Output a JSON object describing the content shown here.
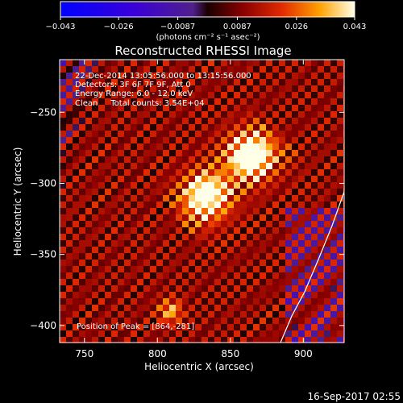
{
  "chart_data": {
    "type": "heatmap",
    "title": "Reconstructed RHESSI Image",
    "xlabel": "Heliocentric X (arcsec)",
    "ylabel": "Heliocentric Y (arcsec)",
    "xlim": [
      733,
      928
    ],
    "ylim": [
      -412,
      -213
    ],
    "x_ticks": [
      750,
      800,
      850,
      900
    ],
    "y_ticks": [
      -250,
      -300,
      -350,
      -400
    ],
    "colorbar": {
      "min": -0.043,
      "max": 0.043,
      "tick_values": [
        -0.043,
        -0.026,
        -0.0087,
        0.0087,
        0.026,
        0.043
      ],
      "tick_labels": [
        "−0.043",
        "−0.026",
        "−0.0087",
        "0.0087",
        "0.026",
        "0.043"
      ],
      "units": "(photons cm⁻² s⁻¹ asec⁻²)"
    },
    "annotations": [
      "22-Dec-2014 13:05:56.000 to 13:15:56.000",
      "Detectors: 3F 6F 7F 9F, Att 0",
      "Energy Range: 6.0 - 12.0 keV",
      "Clean     Total counts: 3.54E+04"
    ],
    "peak_label": "Position of Peak = [864,-281]",
    "peaks": [
      {
        "x": 864,
        "y": -281,
        "value": 0.043
      },
      {
        "x": 834,
        "y": -309,
        "value": 0.04
      },
      {
        "x": 809,
        "y": -390,
        "value": 0.022
      }
    ],
    "footer_timestamp": "16-Sep-2017 02:55",
    "colors": {
      "background": "#000000",
      "text": "#ffffff"
    }
  }
}
